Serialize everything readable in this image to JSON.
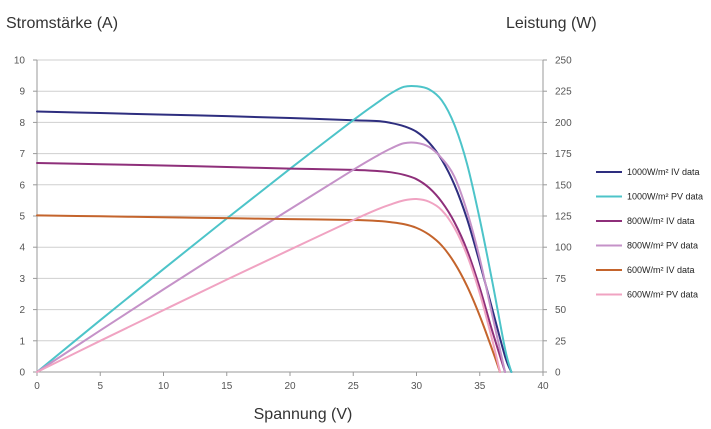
{
  "chart_data": {
    "type": "line",
    "xlabel": "Spannung (V)",
    "ylabel": "Stromstärke (A)",
    "y2label": "Leistung (W)",
    "xlim": [
      0,
      40
    ],
    "ylim": [
      0,
      10
    ],
    "y2lim": [
      0,
      250
    ],
    "xticks": [
      "0",
      "5",
      "10",
      "15",
      "20",
      "25",
      "30",
      "35",
      "40"
    ],
    "yticks": [
      "0",
      "1",
      "2",
      "3",
      "4",
      "5",
      "6",
      "7",
      "8",
      "9",
      "10"
    ],
    "y2ticks": [
      "0",
      "25",
      "50",
      "75",
      "100",
      "125",
      "150",
      "175",
      "200",
      "225",
      "250"
    ],
    "grid": "horizontal",
    "legend_position": "right",
    "series": [
      {
        "name": "1000W/m² IV data",
        "axis": "left",
        "color": "#2e2e7f",
        "points": [
          [
            0,
            8.35
          ],
          [
            5,
            8.3
          ],
          [
            10,
            8.25
          ],
          [
            15,
            8.2
          ],
          [
            20,
            8.14
          ],
          [
            25,
            8.07
          ],
          [
            27,
            8.04
          ],
          [
            28,
            7.98
          ],
          [
            29,
            7.88
          ],
          [
            30,
            7.7
          ],
          [
            31,
            7.35
          ],
          [
            32,
            6.8
          ],
          [
            33,
            6.0
          ],
          [
            34,
            4.9
          ],
          [
            35,
            3.5
          ],
          [
            36,
            2.0
          ],
          [
            37,
            0.5
          ],
          [
            37.5,
            0
          ]
        ]
      },
      {
        "name": "1000W/m² PV data",
        "axis": "right",
        "color": "#4dc4c9",
        "points": [
          [
            0,
            0
          ],
          [
            5,
            41.5
          ],
          [
            10,
            82.5
          ],
          [
            15,
            123
          ],
          [
            20,
            162.8
          ],
          [
            25,
            201.8
          ],
          [
            27,
            216.5
          ],
          [
            28,
            223.4
          ],
          [
            29,
            228.5
          ],
          [
            30,
            229
          ],
          [
            31,
            226.5
          ],
          [
            32,
            217.6
          ],
          [
            33,
            198
          ],
          [
            34,
            166.6
          ],
          [
            35,
            122.5
          ],
          [
            36,
            72
          ],
          [
            37,
            18.5
          ],
          [
            37.5,
            0
          ]
        ]
      },
      {
        "name": "800W/m² IV data",
        "axis": "left",
        "color": "#8e2f7a",
        "points": [
          [
            0,
            6.7
          ],
          [
            5,
            6.66
          ],
          [
            10,
            6.62
          ],
          [
            15,
            6.57
          ],
          [
            20,
            6.52
          ],
          [
            25,
            6.48
          ],
          [
            27,
            6.44
          ],
          [
            28,
            6.4
          ],
          [
            29,
            6.32
          ],
          [
            30,
            6.18
          ],
          [
            31,
            5.9
          ],
          [
            32,
            5.45
          ],
          [
            33,
            4.8
          ],
          [
            34,
            3.9
          ],
          [
            35,
            2.7
          ],
          [
            36,
            1.3
          ],
          [
            37,
            0
          ]
        ]
      },
      {
        "name": "800W/m² PV data",
        "axis": "right",
        "color": "#c592c8",
        "points": [
          [
            0,
            0
          ],
          [
            5,
            33.3
          ],
          [
            10,
            66.2
          ],
          [
            15,
            98.6
          ],
          [
            20,
            130.4
          ],
          [
            25,
            162
          ],
          [
            27,
            173.9
          ],
          [
            28,
            179.2
          ],
          [
            29,
            183.3
          ],
          [
            30,
            183.6
          ],
          [
            31,
            180.3
          ],
          [
            32,
            171.2
          ],
          [
            33,
            156.4
          ],
          [
            34,
            128.5
          ],
          [
            35,
            91
          ],
          [
            36,
            45
          ],
          [
            37,
            0
          ]
        ]
      },
      {
        "name": "600W/m² IV data",
        "axis": "left",
        "color": "#c4642c",
        "points": [
          [
            0,
            5.02
          ],
          [
            5,
            4.99
          ],
          [
            10,
            4.96
          ],
          [
            15,
            4.93
          ],
          [
            20,
            4.9
          ],
          [
            25,
            4.87
          ],
          [
            27,
            4.84
          ],
          [
            28,
            4.8
          ],
          [
            29,
            4.74
          ],
          [
            30,
            4.62
          ],
          [
            31,
            4.4
          ],
          [
            32,
            4.05
          ],
          [
            33,
            3.5
          ],
          [
            34,
            2.75
          ],
          [
            35,
            1.8
          ],
          [
            36,
            0.7
          ],
          [
            36.6,
            0
          ]
        ]
      },
      {
        "name": "600W/m² PV data",
        "axis": "right",
        "color": "#f0a3c2",
        "points": [
          [
            0,
            0
          ],
          [
            5,
            25
          ],
          [
            10,
            49.6
          ],
          [
            15,
            74
          ],
          [
            20,
            98
          ],
          [
            25,
            121.8
          ],
          [
            27,
            130.7
          ],
          [
            28,
            134.4
          ],
          [
            29,
            137.5
          ],
          [
            30,
            138.6
          ],
          [
            31,
            136.4
          ],
          [
            32,
            129.6
          ],
          [
            33,
            115.5
          ],
          [
            34,
            93.5
          ],
          [
            35,
            63
          ],
          [
            36,
            25.2
          ],
          [
            36.6,
            0
          ]
        ]
      }
    ]
  }
}
